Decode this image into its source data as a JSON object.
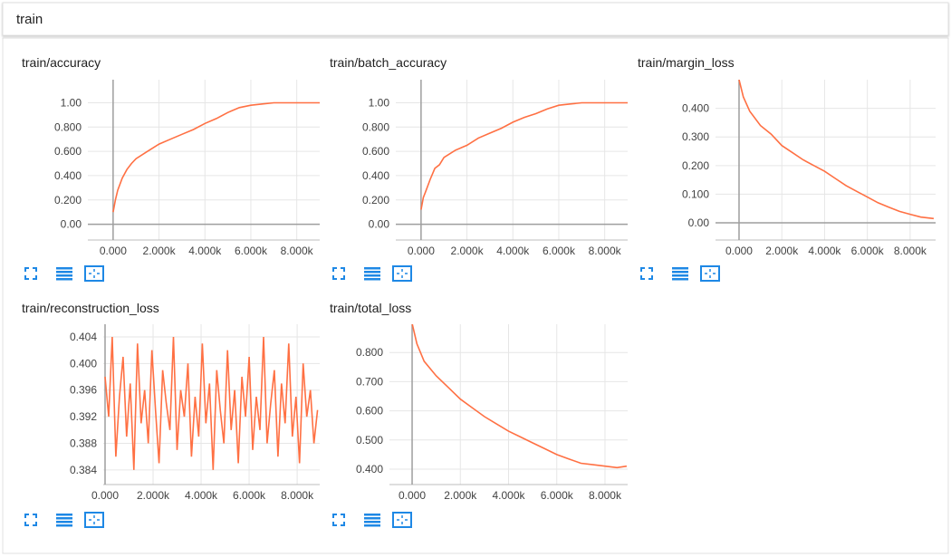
{
  "header": {
    "title": "train"
  },
  "chart_data": [
    {
      "type": "line",
      "title": "train/accuracy",
      "color": "#ff7043",
      "x": [
        0,
        100,
        200,
        400,
        600,
        800,
        1000,
        1500,
        2000,
        2500,
        3000,
        3500,
        4000,
        4500,
        5000,
        5500,
        6000,
        6500,
        7000,
        8000,
        9000
      ],
      "values": [
        0.1,
        0.2,
        0.28,
        0.38,
        0.45,
        0.5,
        0.54,
        0.6,
        0.66,
        0.7,
        0.74,
        0.78,
        0.83,
        0.87,
        0.92,
        0.96,
        0.98,
        0.99,
        1.0,
        1.0,
        1.0
      ],
      "xlim": [
        -1100,
        9000
      ],
      "ylim": [
        -0.13,
        1.19
      ],
      "xticks": [
        {
          "value": 0,
          "label": "0.000"
        },
        {
          "value": 2000,
          "label": "2.000k"
        },
        {
          "value": 4000,
          "label": "4.000k"
        },
        {
          "value": 6000,
          "label": "6.000k"
        },
        {
          "value": 8000,
          "label": "8.000k"
        }
      ],
      "yticks": [
        {
          "value": 0,
          "label": "0.00"
        },
        {
          "value": 0.2,
          "label": "0.200"
        },
        {
          "value": 0.4,
          "label": "0.400"
        },
        {
          "value": 0.6,
          "label": "0.600"
        },
        {
          "value": 0.8,
          "label": "0.800"
        },
        {
          "value": 1,
          "label": "1.00"
        }
      ],
      "grid": true
    },
    {
      "type": "line",
      "title": "train/batch_accuracy",
      "color": "#ff7043",
      "x": [
        0,
        100,
        200,
        400,
        600,
        800,
        1000,
        1500,
        2000,
        2500,
        3000,
        3500,
        4000,
        4500,
        5000,
        5500,
        6000,
        6500,
        7000,
        8000,
        9000
      ],
      "values": [
        0.12,
        0.22,
        0.27,
        0.37,
        0.46,
        0.49,
        0.55,
        0.61,
        0.65,
        0.71,
        0.75,
        0.79,
        0.84,
        0.88,
        0.91,
        0.95,
        0.98,
        0.99,
        1.0,
        1.0,
        1.0
      ],
      "xlim": [
        -1100,
        9000
      ],
      "ylim": [
        -0.13,
        1.19
      ],
      "xticks": [
        {
          "value": 0,
          "label": "0.000"
        },
        {
          "value": 2000,
          "label": "2.000k"
        },
        {
          "value": 4000,
          "label": "4.000k"
        },
        {
          "value": 6000,
          "label": "6.000k"
        },
        {
          "value": 8000,
          "label": "8.000k"
        }
      ],
      "yticks": [
        {
          "value": 0,
          "label": "0.00"
        },
        {
          "value": 0.2,
          "label": "0.200"
        },
        {
          "value": 0.4,
          "label": "0.400"
        },
        {
          "value": 0.6,
          "label": "0.600"
        },
        {
          "value": 0.8,
          "label": "0.800"
        },
        {
          "value": 1,
          "label": "1.00"
        }
      ],
      "grid": true
    },
    {
      "type": "line",
      "title": "train/margin_loss",
      "color": "#ff7043",
      "x": [
        0,
        200,
        500,
        1000,
        1500,
        2000,
        2500,
        3000,
        3500,
        4000,
        4500,
        5000,
        5500,
        6000,
        6500,
        7000,
        7500,
        8000,
        8500,
        9100
      ],
      "values": [
        0.5,
        0.44,
        0.39,
        0.34,
        0.31,
        0.27,
        0.245,
        0.22,
        0.2,
        0.18,
        0.155,
        0.13,
        0.11,
        0.09,
        0.07,
        0.055,
        0.04,
        0.03,
        0.02,
        0.015
      ],
      "xlim": [
        -1100,
        9190
      ],
      "ylim": [
        -0.06,
        0.5
      ],
      "xticks": [
        {
          "value": 0,
          "label": "0.000"
        },
        {
          "value": 2000,
          "label": "2.000k"
        },
        {
          "value": 4000,
          "label": "4.000k"
        },
        {
          "value": 6000,
          "label": "6.000k"
        },
        {
          "value": 8000,
          "label": "8.000k"
        }
      ],
      "yticks": [
        {
          "value": 0,
          "label": "0.00"
        },
        {
          "value": 0.1,
          "label": "0.100"
        },
        {
          "value": 0.2,
          "label": "0.200"
        },
        {
          "value": 0.3,
          "label": "0.300"
        },
        {
          "value": 0.4,
          "label": "0.400"
        }
      ],
      "grid": true
    },
    {
      "type": "line",
      "title": "train/reconstruction_loss",
      "color": "#ff7043",
      "x": [
        0,
        150,
        300,
        450,
        600,
        750,
        900,
        1050,
        1200,
        1350,
        1500,
        1650,
        1800,
        1950,
        2100,
        2250,
        2400,
        2550,
        2700,
        2850,
        3000,
        3150,
        3300,
        3450,
        3600,
        3750,
        3900,
        4050,
        4200,
        4350,
        4500,
        4650,
        4800,
        4950,
        5100,
        5250,
        5400,
        5550,
        5700,
        5850,
        6000,
        6150,
        6300,
        6450,
        6600,
        6750,
        6900,
        7050,
        7200,
        7350,
        7500,
        7650,
        7800,
        7950,
        8100,
        8250,
        8400,
        8550,
        8700,
        8850
      ],
      "values": [
        0.398,
        0.392,
        0.404,
        0.386,
        0.395,
        0.401,
        0.389,
        0.397,
        0.384,
        0.403,
        0.391,
        0.396,
        0.388,
        0.402,
        0.393,
        0.385,
        0.399,
        0.394,
        0.39,
        0.404,
        0.387,
        0.396,
        0.392,
        0.4,
        0.386,
        0.395,
        0.389,
        0.403,
        0.391,
        0.397,
        0.384,
        0.399,
        0.393,
        0.388,
        0.402,
        0.39,
        0.396,
        0.385,
        0.398,
        0.392,
        0.401,
        0.387,
        0.395,
        0.39,
        0.404,
        0.388,
        0.394,
        0.399,
        0.386,
        0.397,
        0.391,
        0.403,
        0.389,
        0.395,
        0.385,
        0.4,
        0.392,
        0.396,
        0.388,
        0.393
      ],
      "xlim": [
        -75,
        8940
      ],
      "ylim": [
        0.3818,
        0.4059
      ],
      "xticks": [
        {
          "value": 0,
          "label": "0.000"
        },
        {
          "value": 2000,
          "label": "2.000k"
        },
        {
          "value": 4000,
          "label": "4.000k"
        },
        {
          "value": 6000,
          "label": "6.000k"
        },
        {
          "value": 8000,
          "label": "8.000k"
        }
      ],
      "yticks": [
        0.384,
        0.388,
        0.392,
        0.396,
        {
          "value": 0.4,
          "label": "0.400"
        },
        0.404
      ],
      "grid": true
    },
    {
      "type": "line",
      "title": "train/total_loss",
      "color": "#ff7043",
      "x": [
        0,
        200,
        500,
        1000,
        1500,
        2000,
        2500,
        3000,
        3500,
        4000,
        4500,
        5000,
        5500,
        6000,
        6500,
        7000,
        7500,
        8000,
        8500,
        8900
      ],
      "values": [
        0.9,
        0.83,
        0.77,
        0.72,
        0.68,
        0.64,
        0.61,
        0.58,
        0.555,
        0.53,
        0.51,
        0.49,
        0.47,
        0.45,
        0.435,
        0.42,
        0.415,
        0.41,
        0.405,
        0.41
      ],
      "xlim": [
        -940,
        8940
      ],
      "ylim": [
        0.347,
        0.897
      ],
      "xticks": [
        {
          "value": 0,
          "label": "0.000"
        },
        {
          "value": 2000,
          "label": "2.000k"
        },
        {
          "value": 4000,
          "label": "4.000k"
        },
        {
          "value": 6000,
          "label": "6.000k"
        },
        {
          "value": 8000,
          "label": "8.000k"
        }
      ],
      "yticks": [
        {
          "value": 0.4,
          "label": "0.400"
        },
        {
          "value": 0.5,
          "label": "0.500"
        },
        {
          "value": 0.6,
          "label": "0.600"
        },
        {
          "value": 0.7,
          "label": "0.700"
        },
        {
          "value": 0.8,
          "label": "0.800"
        }
      ],
      "grid": true
    }
  ]
}
